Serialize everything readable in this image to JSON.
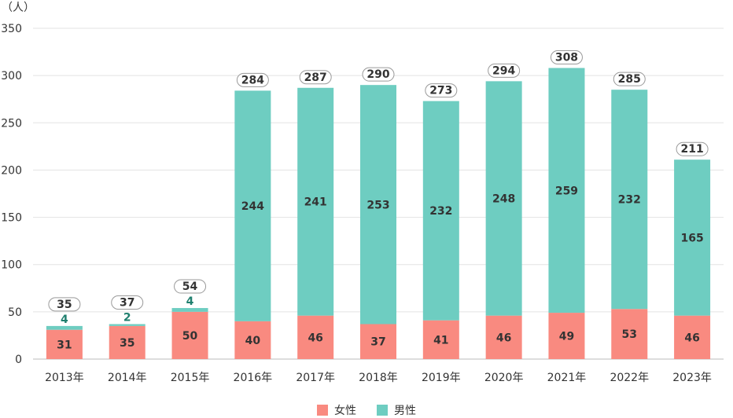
{
  "chart_data": {
    "type": "bar",
    "stacked": true,
    "unit_label": "（人）",
    "categories": [
      "2013年",
      "2014年",
      "2015年",
      "2016年",
      "2017年",
      "2018年",
      "2019年",
      "2020年",
      "2021年",
      "2022年",
      "2023年"
    ],
    "series": [
      {
        "name": "女性",
        "color": "#f98a80",
        "values": [
          31,
          35,
          50,
          40,
          46,
          37,
          41,
          46,
          49,
          53,
          46
        ]
      },
      {
        "name": "男性",
        "color": "#6ecdc1",
        "values": [
          4,
          2,
          4,
          244,
          241,
          253,
          232,
          248,
          259,
          232,
          165
        ]
      }
    ],
    "totals": [
      35,
      37,
      54,
      284,
      287,
      290,
      273,
      294,
      308,
      285,
      211
    ],
    "ylim": [
      0,
      350
    ],
    "yticks": [
      0,
      50,
      100,
      150,
      200,
      250,
      300,
      350
    ],
    "grid": true,
    "legend_position": "bottom-center"
  }
}
